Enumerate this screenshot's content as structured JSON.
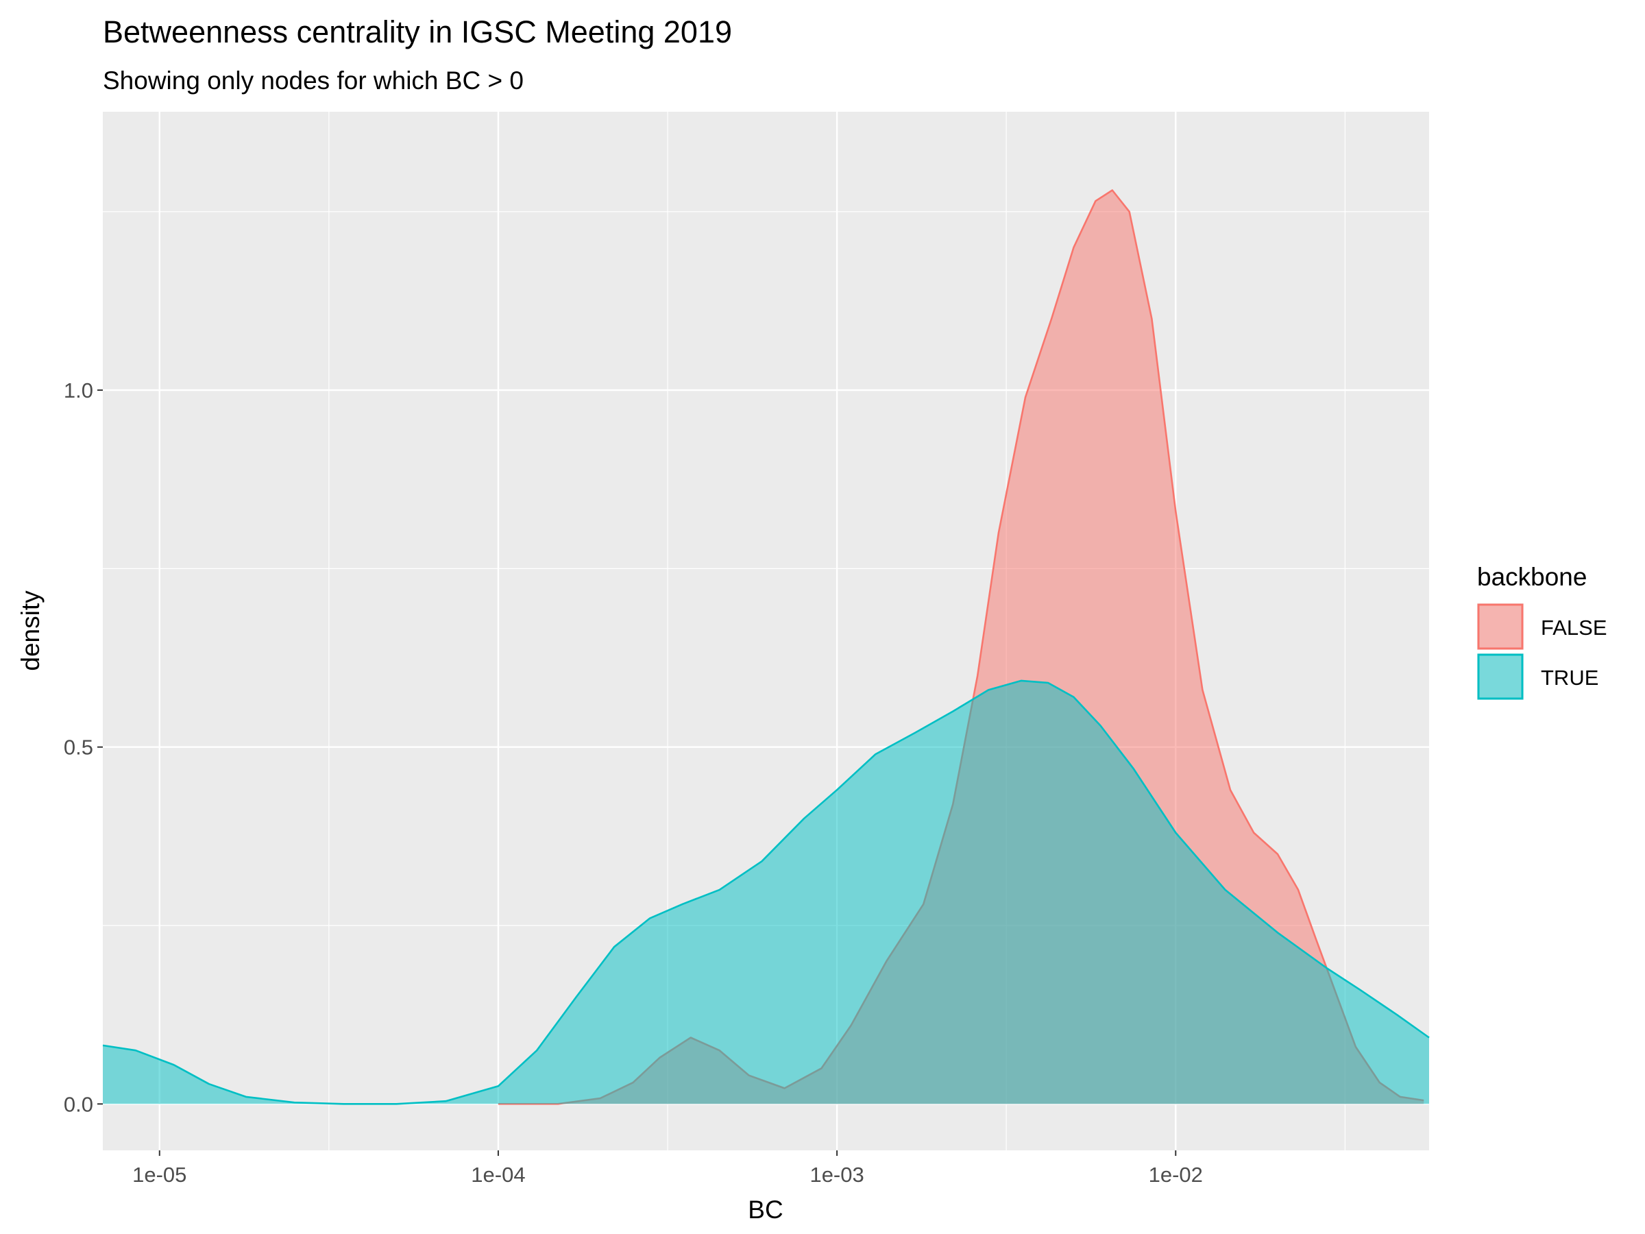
{
  "chart_data": {
    "type": "area",
    "title": "Betweenness centrality in IGSC Meeting 2019",
    "subtitle": "Showing only nodes for which BC > 0",
    "xlabel": "BC",
    "ylabel": "density",
    "x_scale": "log10",
    "xlim": [
      6.8e-06,
      0.056
    ],
    "ylim": [
      -0.065,
      1.39
    ],
    "x_ticks": [
      {
        "value": 1e-05,
        "label": "1e-05"
      },
      {
        "value": 0.0001,
        "label": "1e-04"
      },
      {
        "value": 0.001,
        "label": "1e-03"
      },
      {
        "value": 0.01,
        "label": "1e-02"
      }
    ],
    "y_ticks": [
      {
        "value": 0.0,
        "label": "0.0"
      },
      {
        "value": 0.5,
        "label": "0.5"
      },
      {
        "value": 1.0,
        "label": "1.0"
      }
    ],
    "grid": true,
    "legend": {
      "title": "backbone",
      "position": "right"
    },
    "series": [
      {
        "name": "FALSE",
        "line_color": "#F8766D",
        "fill_color": "#F8766D",
        "fill_opacity": 0.5,
        "x": [
          0.0001,
          0.00015,
          0.0002,
          0.00025,
          0.0003,
          0.00037,
          0.00045,
          0.00055,
          0.0007,
          0.0009,
          0.0011,
          0.0014,
          0.0018,
          0.0022,
          0.0026,
          0.003,
          0.0036,
          0.0043,
          0.005,
          0.0058,
          0.0065,
          0.0073,
          0.0085,
          0.01,
          0.012,
          0.0145,
          0.017,
          0.02,
          0.023,
          0.026,
          0.03,
          0.034,
          0.04,
          0.046,
          0.054
        ],
        "y": [
          0.0,
          0.0,
          0.008,
          0.03,
          0.065,
          0.093,
          0.075,
          0.04,
          0.022,
          0.05,
          0.11,
          0.2,
          0.28,
          0.42,
          0.6,
          0.8,
          0.99,
          1.1,
          1.2,
          1.265,
          1.28,
          1.25,
          1.1,
          0.83,
          0.58,
          0.44,
          0.38,
          0.35,
          0.3,
          0.23,
          0.15,
          0.08,
          0.03,
          0.01,
          0.005
        ]
      },
      {
        "name": "TRUE",
        "line_color": "#00BFC4",
        "fill_color": "#00BFC4",
        "fill_opacity": 0.5,
        "x": [
          6.8e-06,
          8.5e-06,
          1.1e-05,
          1.4e-05,
          1.8e-05,
          2.5e-05,
          3.5e-05,
          5e-05,
          7e-05,
          0.0001,
          0.00013,
          0.00017,
          0.00022,
          0.00028,
          0.00035,
          0.00045,
          0.0006,
          0.0008,
          0.001,
          0.0013,
          0.0017,
          0.0022,
          0.0028,
          0.0035,
          0.0042,
          0.005,
          0.006,
          0.0075,
          0.01,
          0.014,
          0.02,
          0.028,
          0.035,
          0.045,
          0.056
        ],
        "y": [
          0.082,
          0.075,
          0.055,
          0.028,
          0.01,
          0.002,
          0.0,
          0.0,
          0.004,
          0.025,
          0.075,
          0.15,
          0.22,
          0.26,
          0.28,
          0.3,
          0.34,
          0.4,
          0.44,
          0.49,
          0.52,
          0.55,
          0.58,
          0.593,
          0.59,
          0.57,
          0.53,
          0.47,
          0.38,
          0.3,
          0.24,
          0.19,
          0.16,
          0.125,
          0.093
        ]
      }
    ]
  }
}
